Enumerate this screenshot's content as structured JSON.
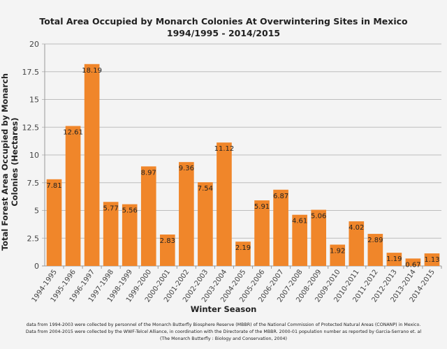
{
  "chart_data": {
    "type": "bar",
    "title": [
      "Total Area Occupied by Monarch Colonies At Overwintering Sites in Mexico",
      "1994/1995 - 2014/2015"
    ],
    "xlabel": "Winter Season",
    "ylabel": "Total Forest Area Occupied by Monarch Colonies (Hectares)",
    "ylim": [
      0,
      20
    ],
    "yticks": [
      0,
      2.5,
      5,
      7.5,
      10,
      12.5,
      15,
      17.5,
      20
    ],
    "grid": true,
    "bar_color": "#f0862a",
    "categories": [
      "1994-1995",
      "1995-1996",
      "1996-1997",
      "1997-1998",
      "1998-1999",
      "1999-2000",
      "2000-2001",
      "2001-2002",
      "2002-2003",
      "2003-2004",
      "2004-2005",
      "2005-2006",
      "2006-2007",
      "2007-2008",
      "2008-2009",
      "2009-2010",
      "2010-2011",
      "2011-2012",
      "2012-2013",
      "2013-2014",
      "2014-2015"
    ],
    "values": [
      7.81,
      12.61,
      18.19,
      5.77,
      5.56,
      8.97,
      2.83,
      9.36,
      7.54,
      11.12,
      2.19,
      5.91,
      6.87,
      4.61,
      5.06,
      1.92,
      4.02,
      2.89,
      1.19,
      0.67,
      1.13
    ]
  },
  "notes": [
    "data from 1994-2003 were collected by personnel of the Monarch Butterfly Biosphere Reserve (MBBR) of the National Commission of Protected Natural Areas (CONANP) in Mexico.",
    "Data from 2004-2015 were collected by the WWF-Telcel Alliance, in coordination with the Directorate of the MBBR. 2000-01 population number as reported by Garcia-Serrano et. al",
    "(The Monarch Butterfly : Biology and Conservation, 2004)"
  ]
}
